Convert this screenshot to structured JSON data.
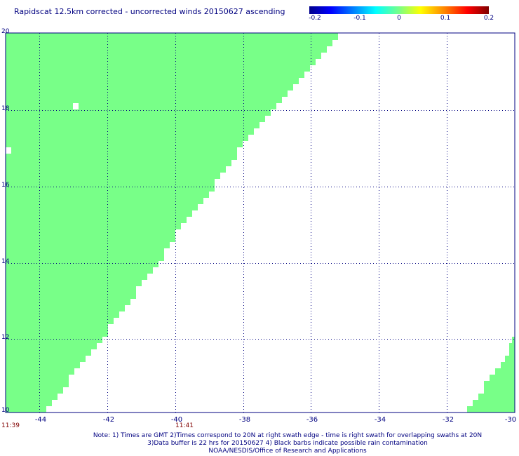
{
  "title": "Rapidscat 12.5km corrected - uncorrected winds 20150627 ascending",
  "colorbar": {
    "min": -0.2,
    "max": 0.2,
    "ticks": [
      "-0.2",
      "-0.1",
      "0",
      "0.1",
      "0.2"
    ]
  },
  "map": {
    "lon_range": [
      -45,
      -30
    ],
    "lat_range": [
      10,
      20
    ],
    "lon_ticks": [
      "-44",
      "-42",
      "-40",
      "-38",
      "-36",
      "-34",
      "-32",
      "-30"
    ],
    "lat_ticks": [
      "10",
      "12",
      "14",
      "16",
      "18",
      "20"
    ],
    "data_color": "#78ff88",
    "grid_color": "#000080"
  },
  "times": [
    "11:39",
    "11:41"
  ],
  "notes": [
    "Note: 1) Times are GMT 2)Times correspond to 20N at right swath edge - time is right swath for overlapping swaths at 20N",
    "3)Data buffer is 22 hrs for 20150627 4) Black barbs indicate possible rain contamination",
    "NOAA/NESDIS/Office of Research and Applications"
  ]
}
